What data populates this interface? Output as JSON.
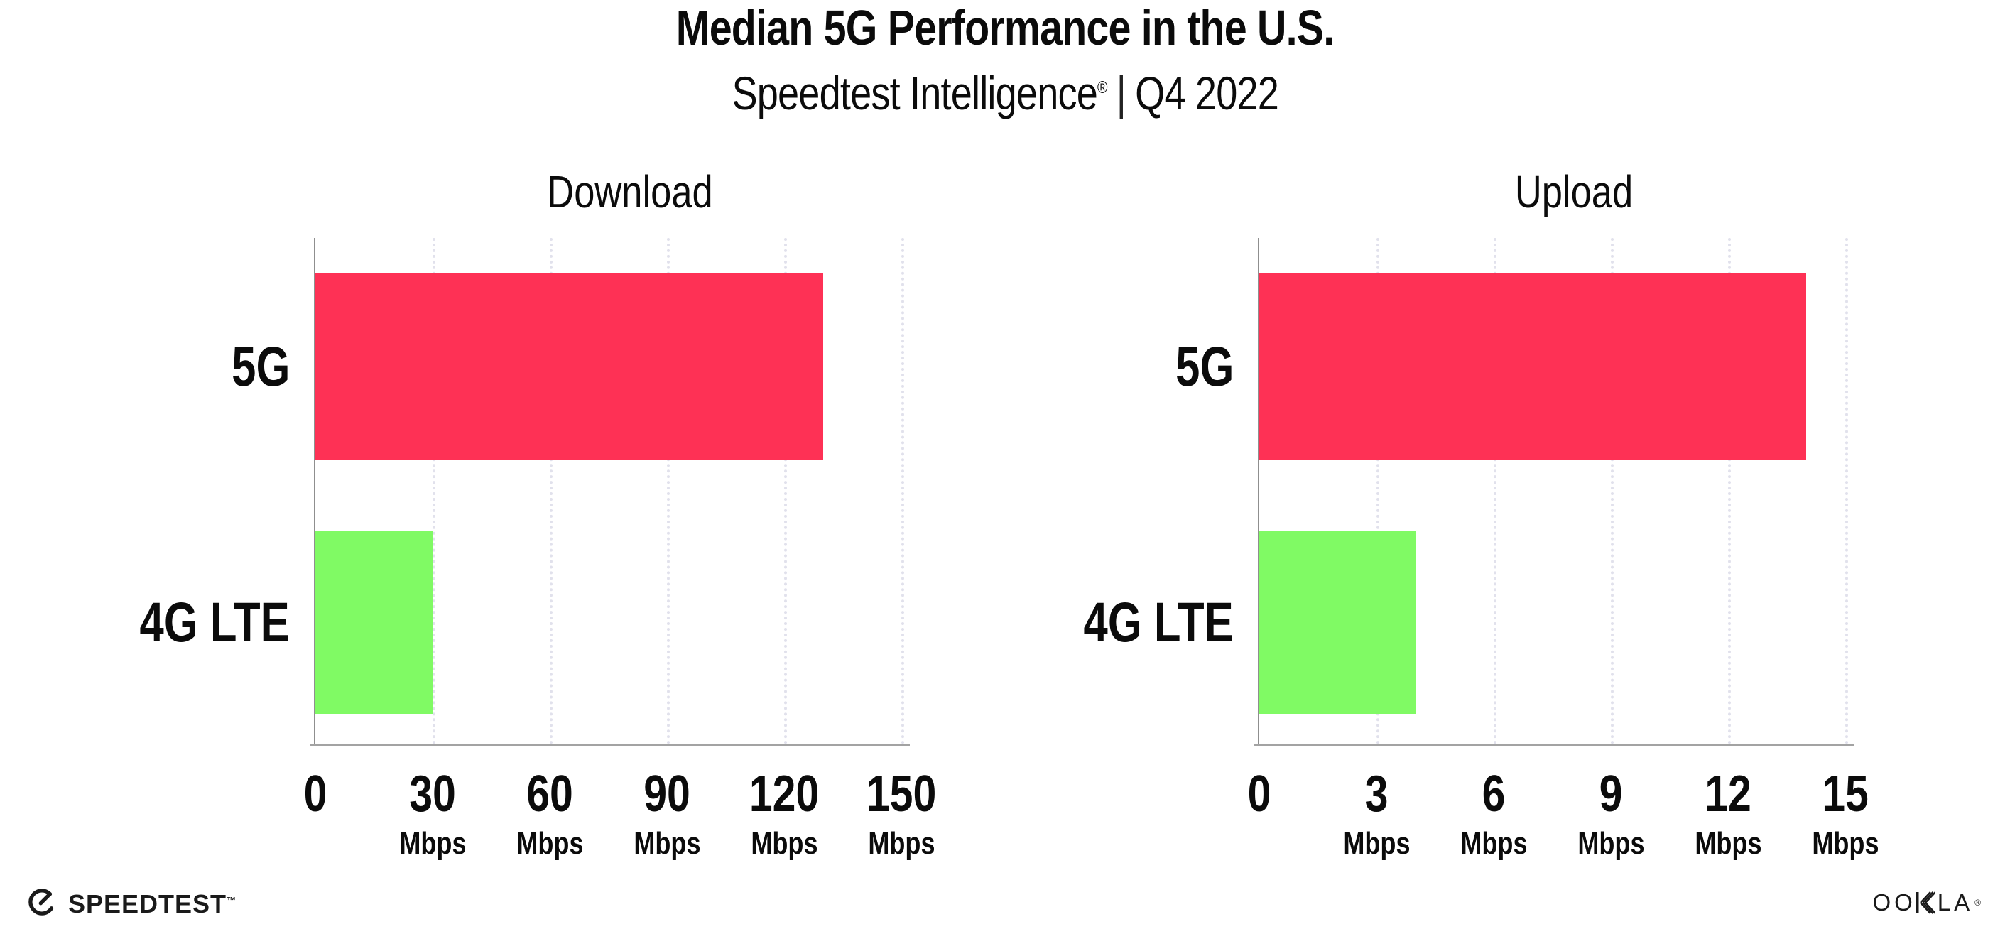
{
  "page": {
    "background": "#ffffff"
  },
  "header": {
    "title": "Median 5G Performance in the U.S.",
    "subtitle_brand": "Speedtest Intelligence",
    "subtitle_reg": "®",
    "subtitle_separator": "|",
    "subtitle_period": "Q4 2022"
  },
  "colors": {
    "bar_5g": "#FE3155",
    "bar_4g_lte": "#80FA64",
    "axis_line": "#8f8f8f",
    "gridline": "#e1e1ec",
    "text": "#0b0b0b"
  },
  "icons": {
    "speedtest": "gauge-needle-circle-icon",
    "ookla_k": "striped-k-glyph"
  },
  "chart_data": [
    {
      "type": "bar",
      "orientation": "horizontal",
      "title": "Download",
      "categories": [
        "5G",
        "4G LTE"
      ],
      "values": [
        130,
        30
      ],
      "unit": "Mbps",
      "xlim": [
        0,
        150
      ],
      "xticks": [
        0,
        30,
        60,
        90,
        120,
        150
      ],
      "bar_colors": [
        "#FE3155",
        "#80FA64"
      ],
      "grid": "dotted-vertical-at-ticks",
      "legend": "none"
    },
    {
      "type": "bar",
      "orientation": "horizontal",
      "title": "Upload",
      "categories": [
        "5G",
        "4G LTE"
      ],
      "values": [
        14,
        4
      ],
      "unit": "Mbps",
      "xlim": [
        0,
        15
      ],
      "xticks": [
        0,
        3,
        6,
        9,
        12,
        15
      ],
      "bar_colors": [
        "#FE3155",
        "#80FA64"
      ],
      "grid": "dotted-vertical-at-ticks",
      "legend": "none"
    }
  ],
  "footer": {
    "speedtest_label": "SPEEDTEST",
    "speedtest_tm": "™",
    "ookla_label": "OOKLA",
    "ookla_reg": "®"
  }
}
